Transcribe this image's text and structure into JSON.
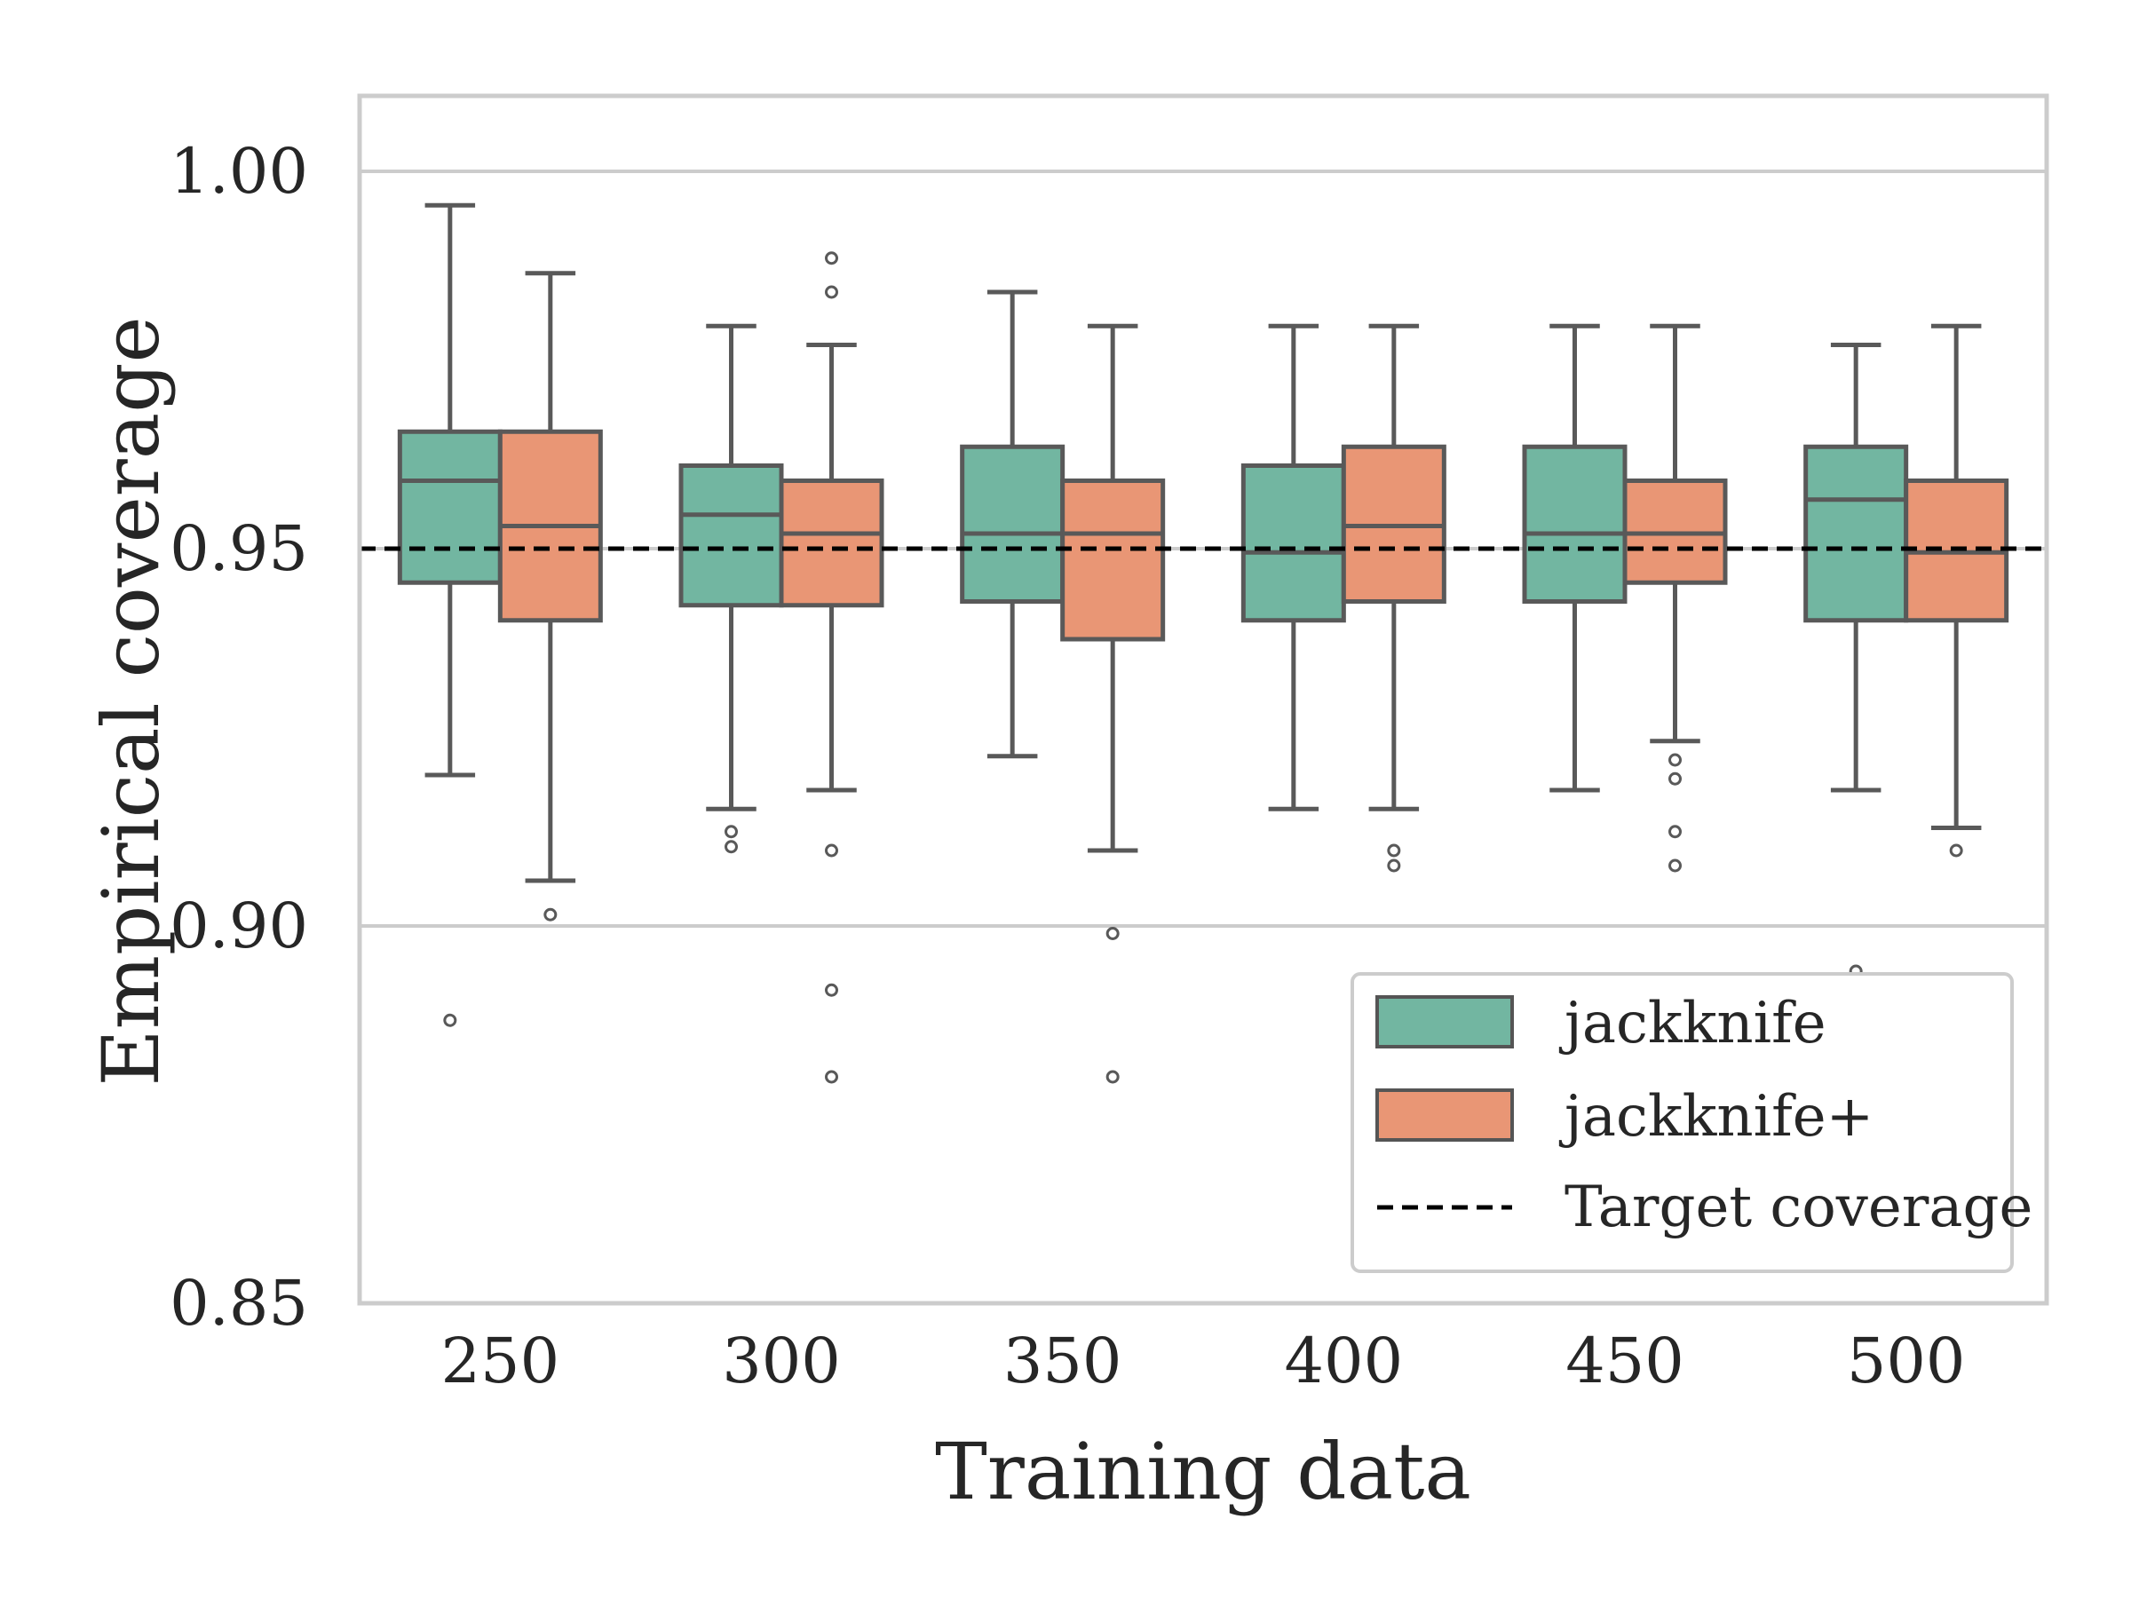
{
  "chart_data": {
    "type": "box",
    "xlabel": "Training data",
    "ylabel": "Empirical coverage",
    "categories": [
      "250",
      "300",
      "350",
      "400",
      "450",
      "500"
    ],
    "ylim": [
      0.85,
      1.01
    ],
    "yticks": [
      "0.85",
      "0.90",
      "0.95",
      "1.00"
    ],
    "ytick_values": [
      0.85,
      0.9,
      0.95,
      1.0
    ],
    "grid": "horizontal",
    "legend_position": "lower-right",
    "target": {
      "name": "Target coverage",
      "value": 0.95,
      "color": "#000000",
      "style": "dashed"
    },
    "series": [
      {
        "name": "jackknife",
        "color": "#72B6A1",
        "boxes": [
          {
            "whislo": 0.92,
            "q1": 0.9455,
            "med": 0.959,
            "q3": 0.9655,
            "whishi": 0.9955,
            "fliers": [
              0.8875
            ]
          },
          {
            "whislo": 0.9155,
            "q1": 0.9425,
            "med": 0.9545,
            "q3": 0.961,
            "whishi": 0.9795,
            "fliers": [
              0.9125,
              0.9105
            ]
          },
          {
            "whislo": 0.9225,
            "q1": 0.943,
            "med": 0.952,
            "q3": 0.9635,
            "whishi": 0.984,
            "fliers": []
          },
          {
            "whislo": 0.9155,
            "q1": 0.9405,
            "med": 0.9495,
            "q3": 0.961,
            "whishi": 0.9795,
            "fliers": []
          },
          {
            "whislo": 0.918,
            "q1": 0.943,
            "med": 0.952,
            "q3": 0.9635,
            "whishi": 0.9795,
            "fliers": []
          },
          {
            "whislo": 0.918,
            "q1": 0.9405,
            "med": 0.9565,
            "q3": 0.9635,
            "whishi": 0.977,
            "fliers": [
              0.894
            ]
          }
        ]
      },
      {
        "name": "jackknife+",
        "color": "#E99675",
        "boxes": [
          {
            "whislo": 0.906,
            "q1": 0.9405,
            "med": 0.953,
            "q3": 0.9655,
            "whishi": 0.9865,
            "fliers": [
              0.9015
            ]
          },
          {
            "whislo": 0.918,
            "q1": 0.9425,
            "med": 0.952,
            "q3": 0.959,
            "whishi": 0.977,
            "fliers": [
              0.9885,
              0.984,
              0.91,
              0.8915,
              0.88
            ]
          },
          {
            "whislo": 0.91,
            "q1": 0.938,
            "med": 0.952,
            "q3": 0.959,
            "whishi": 0.9795,
            "fliers": [
              0.899,
              0.88
            ]
          },
          {
            "whislo": 0.9155,
            "q1": 0.943,
            "med": 0.953,
            "q3": 0.9635,
            "whishi": 0.9795,
            "fliers": [
              0.91,
              0.908
            ]
          },
          {
            "whislo": 0.9245,
            "q1": 0.9455,
            "med": 0.952,
            "q3": 0.959,
            "whishi": 0.9795,
            "fliers": [
              0.922,
              0.9195,
              0.9125,
              0.908
            ]
          },
          {
            "whislo": 0.913,
            "q1": 0.9405,
            "med": 0.9495,
            "q3": 0.959,
            "whishi": 0.9795,
            "fliers": [
              0.91
            ]
          }
        ]
      }
    ]
  }
}
